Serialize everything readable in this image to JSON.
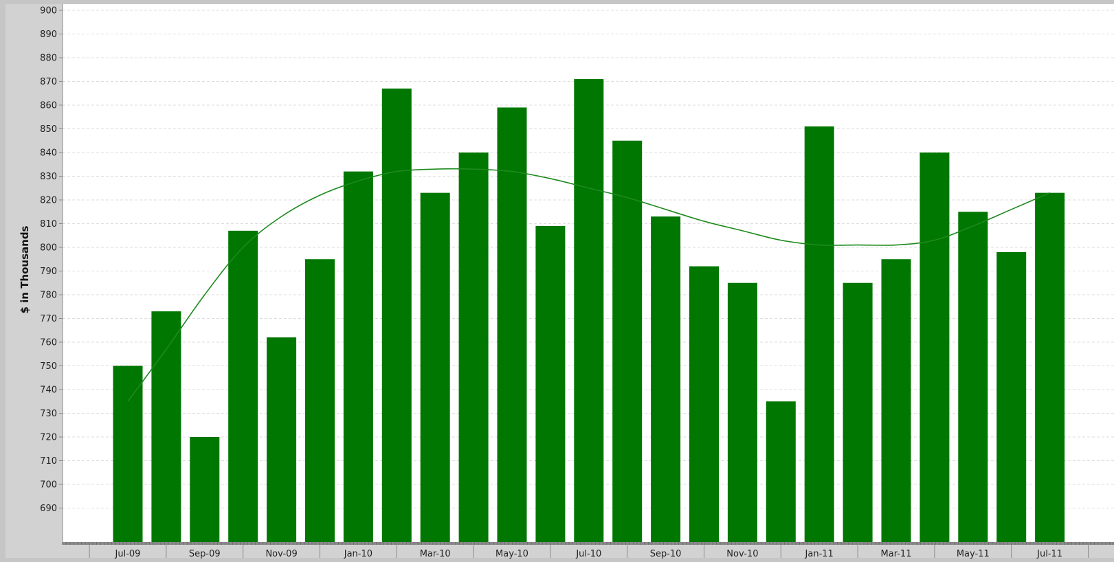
{
  "chart_data": {
    "type": "bar",
    "title": "",
    "xlabel": "",
    "ylabel": "$ in Thousands",
    "ylim": [
      682,
      900
    ],
    "y_ticks": [
      690,
      700,
      710,
      720,
      730,
      740,
      750,
      760,
      770,
      780,
      790,
      800,
      810,
      820,
      830,
      840,
      850,
      860,
      870,
      880,
      890,
      900
    ],
    "grid": "horizontal dashed",
    "legend": "none",
    "categories": [
      "Jul-09",
      "Aug-09",
      "Sep-09",
      "Oct-09",
      "Nov-09",
      "Dec-09",
      "Jan-10",
      "Feb-10",
      "Mar-10",
      "Apr-10",
      "May-10",
      "Jun-10",
      "Jul-10",
      "Aug-10",
      "Sep-10",
      "Oct-10",
      "Nov-10",
      "Dec-10",
      "Jan-11",
      "Feb-11",
      "Mar-11",
      "Apr-11",
      "May-11",
      "Jun-11",
      "Jul-11"
    ],
    "x_tick_labels": [
      "Jul-09",
      "Sep-09",
      "Nov-09",
      "Jan-10",
      "Mar-10",
      "May-10",
      "Jul-10",
      "Sep-10",
      "Nov-10",
      "Jan-11",
      "Mar-11",
      "May-11",
      "Jul-11"
    ],
    "series": [
      {
        "type": "bar",
        "color": "#007700",
        "values": [
          750,
          773,
          720,
          807,
          762,
          795,
          832,
          867,
          823,
          840,
          859,
          809,
          871,
          845,
          813,
          792,
          785,
          735,
          851,
          785,
          795,
          840,
          815,
          798,
          823
        ]
      },
      {
        "type": "line",
        "color": "#1e8a1e",
        "values": [
          735,
          757,
          780,
          800,
          813,
          822,
          828,
          832,
          833,
          833,
          832,
          829,
          825,
          821,
          816,
          811,
          807,
          803,
          801,
          801,
          801,
          803,
          809,
          816,
          823
        ]
      }
    ]
  }
}
